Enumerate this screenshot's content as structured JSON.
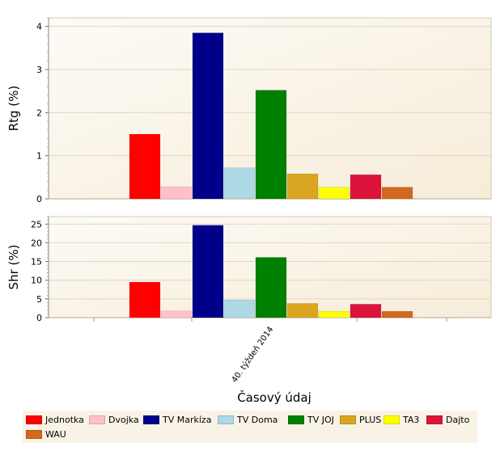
{
  "chart_data": {
    "type": "bar",
    "categories": [
      "40. týždeň 2014"
    ],
    "xlabel": "Časový údaj",
    "series": [
      {
        "name": "Jednotka",
        "color": "#ff0000",
        "rtg": 1.5,
        "shr": 9.5
      },
      {
        "name": "Dvojka",
        "color": "#ffc0cb",
        "rtg": 0.28,
        "shr": 1.8
      },
      {
        "name": "TV Markíza",
        "color": "#00008b",
        "rtg": 3.85,
        "shr": 24.7
      },
      {
        "name": "TV Doma",
        "color": "#add8e6",
        "rtg": 0.72,
        "shr": 4.7
      },
      {
        "name": "TV JOJ",
        "color": "#008000",
        "rtg": 2.52,
        "shr": 16.1
      },
      {
        "name": "PLUS",
        "color": "#daa520",
        "rtg": 0.58,
        "shr": 3.8
      },
      {
        "name": "TA3",
        "color": "#ffff00",
        "rtg": 0.27,
        "shr": 1.7
      },
      {
        "name": "Dajto",
        "color": "#dc143c",
        "rtg": 0.56,
        "shr": 3.6
      },
      {
        "name": "WAU",
        "color": "#d2691e",
        "rtg": 0.27,
        "shr": 1.7
      }
    ],
    "panels": [
      {
        "ylabel": "Rtg (%)",
        "ylim": [
          0,
          4.2
        ],
        "ticks": [
          0,
          1,
          2,
          3,
          4
        ],
        "key": "rtg"
      },
      {
        "ylabel": "Shr (%)",
        "ylim": [
          0,
          27
        ],
        "ticks": [
          0,
          5,
          10,
          15,
          20,
          25
        ],
        "key": "shr"
      }
    ],
    "grid": true,
    "legend_position": "bottom"
  }
}
